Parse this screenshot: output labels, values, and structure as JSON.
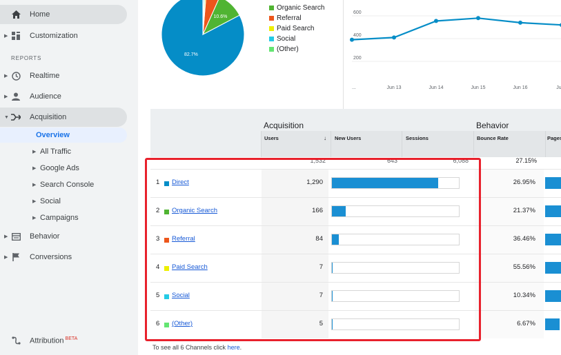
{
  "sidebar": {
    "home": "Home",
    "customization": "Customization",
    "reports_header": "REPORTS",
    "realtime": "Realtime",
    "audience": "Audience",
    "acquisition": "Acquisition",
    "overview": "Overview",
    "all_traffic": "All Traffic",
    "google_ads": "Google Ads",
    "search_console": "Search Console",
    "social": "Social",
    "campaigns": "Campaigns",
    "behavior": "Behavior",
    "conversions": "Conversions",
    "attribution": "Attribution",
    "beta": "BETA"
  },
  "pie": {
    "slices": [
      {
        "channel": "Direct",
        "percent": 82.7,
        "label": "82.7%",
        "color": "#058dc7"
      },
      {
        "channel": "Organic Search",
        "percent": 10.6,
        "label": "10.6%",
        "color": "#50b432"
      },
      {
        "channel": "Referral",
        "percent": 5.4,
        "label": "",
        "color": "#ed561b"
      },
      {
        "channel": "Paid Search",
        "percent": 0.5,
        "label": "",
        "color": "#edef00"
      },
      {
        "channel": "Social",
        "percent": 0.5,
        "label": "",
        "color": "#24cbe5"
      },
      {
        "channel": "(Other)",
        "percent": 0.3,
        "label": "",
        "color": "#64e572"
      }
    ]
  },
  "legend": [
    {
      "label": "Organic Search",
      "color": "#50b432"
    },
    {
      "label": "Referral",
      "color": "#ed561b"
    },
    {
      "label": "Paid Search",
      "color": "#edef00"
    },
    {
      "label": "Social",
      "color": "#24cbe5"
    },
    {
      "label": "(Other)",
      "color": "#64e572"
    }
  ],
  "linechart": {
    "y_ticks": [
      "600",
      "400",
      "200"
    ],
    "x_ticks": [
      "...",
      "Jun 13",
      "Jun 14",
      "Jun 15",
      "Jun 16",
      "Ju"
    ],
    "values": [
      390,
      410,
      555,
      580,
      540,
      520
    ],
    "color": "#058dc7"
  },
  "table": {
    "group_acquisition": "Acquisition",
    "group_behavior": "Behavior",
    "col_users": "Users",
    "col_new_users": "New Users",
    "col_sessions": "Sessions",
    "col_bounce_rate": "Bounce Rate",
    "col_pages": "Pages",
    "totals": {
      "users": "1,532",
      "new_users": "643",
      "sessions": "6,088",
      "bounce_rate": "27.15%"
    },
    "rows": [
      {
        "rank": "1",
        "channel": "Direct",
        "color": "#058dc7",
        "users": "1,290",
        "share": 0.839,
        "bounce": "26.95%"
      },
      {
        "rank": "2",
        "channel": "Organic Search",
        "color": "#50b432",
        "users": "166",
        "share": 0.108,
        "bounce": "21.37%"
      },
      {
        "rank": "3",
        "channel": "Referral",
        "color": "#ed561b",
        "users": "84",
        "share": 0.055,
        "bounce": "36.46%"
      },
      {
        "rank": "4",
        "channel": "Paid Search",
        "color": "#edef00",
        "users": "7",
        "share": 0.005,
        "bounce": "55.56%"
      },
      {
        "rank": "5",
        "channel": "Social",
        "color": "#24cbe5",
        "users": "7",
        "share": 0.005,
        "bounce": "10.34%"
      },
      {
        "rank": "6",
        "channel": "(Other)",
        "color": "#64e572",
        "users": "5",
        "share": 0.003,
        "bounce": "6.67%"
      }
    ]
  },
  "footer": {
    "text": "To see all 6 Channels click ",
    "link": "here",
    "end": "."
  }
}
